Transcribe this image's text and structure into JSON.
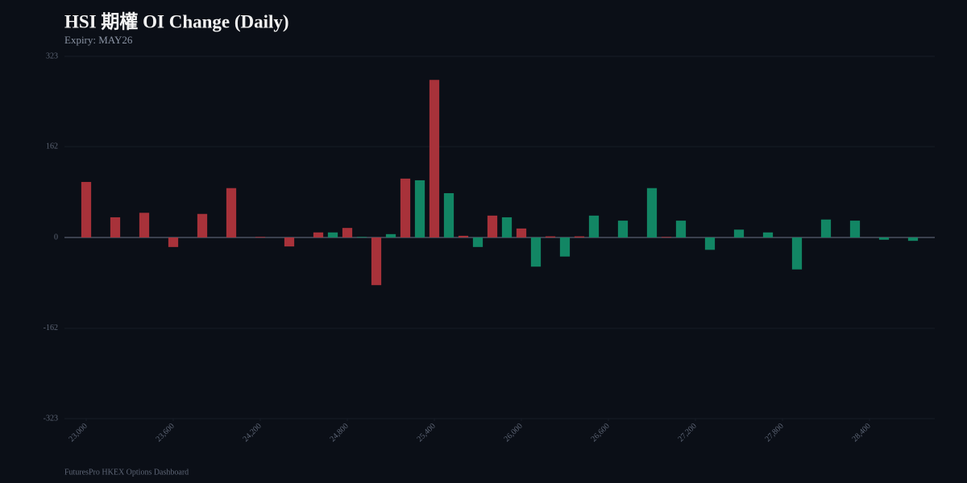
{
  "chart_data": {
    "type": "bar",
    "title": "HSI 期權 OI Change (Daily)",
    "subtitle": "Expiry: MAY26",
    "footer": "FuturesPro HKEX Options Dashboard",
    "xlim": [
      22850,
      28850
    ],
    "ylim": [
      -323,
      323
    ],
    "yticks": [
      323,
      162,
      0,
      -162,
      -323
    ],
    "xticks": [
      {
        "value": 23000,
        "label": "23,000"
      },
      {
        "value": 23600,
        "label": "23,600"
      },
      {
        "value": 24200,
        "label": "24,200"
      },
      {
        "value": 24800,
        "label": "24,800"
      },
      {
        "value": 25400,
        "label": "25,400"
      },
      {
        "value": 26000,
        "label": "26,000"
      },
      {
        "value": 26600,
        "label": "26,600"
      },
      {
        "value": 27200,
        "label": "27,200"
      },
      {
        "value": 27800,
        "label": "27,800"
      },
      {
        "value": 28400,
        "label": "28,400"
      }
    ],
    "grid": true,
    "series": [
      {
        "color": "#a8323a",
        "x": [
          23000,
          23200,
          23400,
          23600,
          23800,
          24000,
          24200,
          24400,
          24600,
          24800,
          25000,
          25200,
          25400,
          25600,
          25800,
          26000,
          26200,
          26400,
          27000
        ],
        "values": [
          99,
          36,
          44,
          -17,
          42,
          88,
          1,
          -16,
          9,
          17,
          -85,
          105,
          281,
          3,
          39,
          16,
          2,
          2,
          1
        ]
      },
      {
        "color": "#128664",
        "x": [
          24700,
          24900,
          25100,
          25300,
          25500,
          25700,
          25900,
          26100,
          26300,
          26500,
          26700,
          26900,
          27100,
          27300,
          27500,
          27700,
          27900,
          28100,
          28300,
          28500,
          28700
        ],
        "values": [
          9,
          1,
          6,
          102,
          79,
          -17,
          36,
          -52,
          -34,
          39,
          30,
          88,
          30,
          -22,
          14,
          9,
          -57,
          32,
          30,
          -4,
          -6
        ]
      }
    ]
  }
}
